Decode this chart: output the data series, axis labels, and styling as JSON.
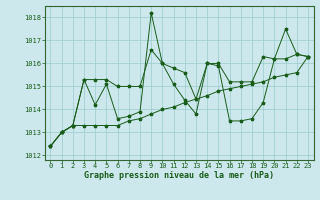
{
  "title": "Graphe pression niveau de la mer (hPa)",
  "background_color": "#cce8ec",
  "grid_color": "#99cccc",
  "line_color": "#1a5c1a",
  "spine_color": "#336633",
  "xlim": [
    -0.5,
    23.5
  ],
  "ylim": [
    1011.8,
    1018.5
  ],
  "yticks": [
    1012,
    1013,
    1014,
    1015,
    1016,
    1017,
    1018
  ],
  "xticks": [
    0,
    1,
    2,
    3,
    4,
    5,
    6,
    7,
    8,
    9,
    10,
    11,
    12,
    13,
    14,
    15,
    16,
    17,
    18,
    19,
    20,
    21,
    22,
    23
  ],
  "series": [
    {
      "x": [
        0,
        1,
        2,
        3,
        4,
        5,
        6,
        7,
        8,
        9,
        10,
        11,
        12,
        13,
        14,
        15,
        16,
        17,
        18,
        19,
        20,
        21,
        22,
        23
      ],
      "y": [
        1012.4,
        1013.0,
        1013.3,
        1015.3,
        1014.2,
        1015.1,
        1013.6,
        1013.7,
        1013.9,
        1018.2,
        1016.0,
        1015.1,
        1014.4,
        1013.8,
        1016.0,
        1015.9,
        1013.5,
        1013.5,
        1013.6,
        1014.3,
        1016.2,
        1017.5,
        1016.4,
        1016.3
      ]
    },
    {
      "x": [
        0,
        1,
        2,
        3,
        4,
        5,
        6,
        7,
        8,
        9,
        10,
        11,
        12,
        13,
        14,
        15,
        16,
        17,
        18,
        19,
        20,
        21,
        22,
        23
      ],
      "y": [
        1012.4,
        1013.0,
        1013.3,
        1015.3,
        1015.3,
        1015.3,
        1015.0,
        1015.0,
        1015.0,
        1016.6,
        1016.0,
        1015.8,
        1015.6,
        1014.45,
        1016.0,
        1016.0,
        1015.2,
        1015.2,
        1015.2,
        1016.3,
        1016.2,
        1016.2,
        1016.4,
        1016.3
      ]
    },
    {
      "x": [
        0,
        1,
        2,
        3,
        4,
        5,
        6,
        7,
        8,
        9,
        10,
        11,
        12,
        13,
        14,
        15,
        16,
        17,
        18,
        19,
        20,
        21,
        22,
        23
      ],
      "y": [
        1012.4,
        1013.0,
        1013.3,
        1013.3,
        1013.3,
        1013.3,
        1013.3,
        1013.5,
        1013.6,
        1013.8,
        1014.0,
        1014.1,
        1014.3,
        1014.45,
        1014.6,
        1014.8,
        1014.9,
        1015.0,
        1015.1,
        1015.2,
        1015.4,
        1015.5,
        1015.6,
        1016.3
      ]
    }
  ],
  "ylabel_fontsize": 5.0,
  "xlabel_fontsize": 5.0,
  "title_fontsize": 6.0,
  "marker_size": 2.5,
  "line_width": 0.7
}
